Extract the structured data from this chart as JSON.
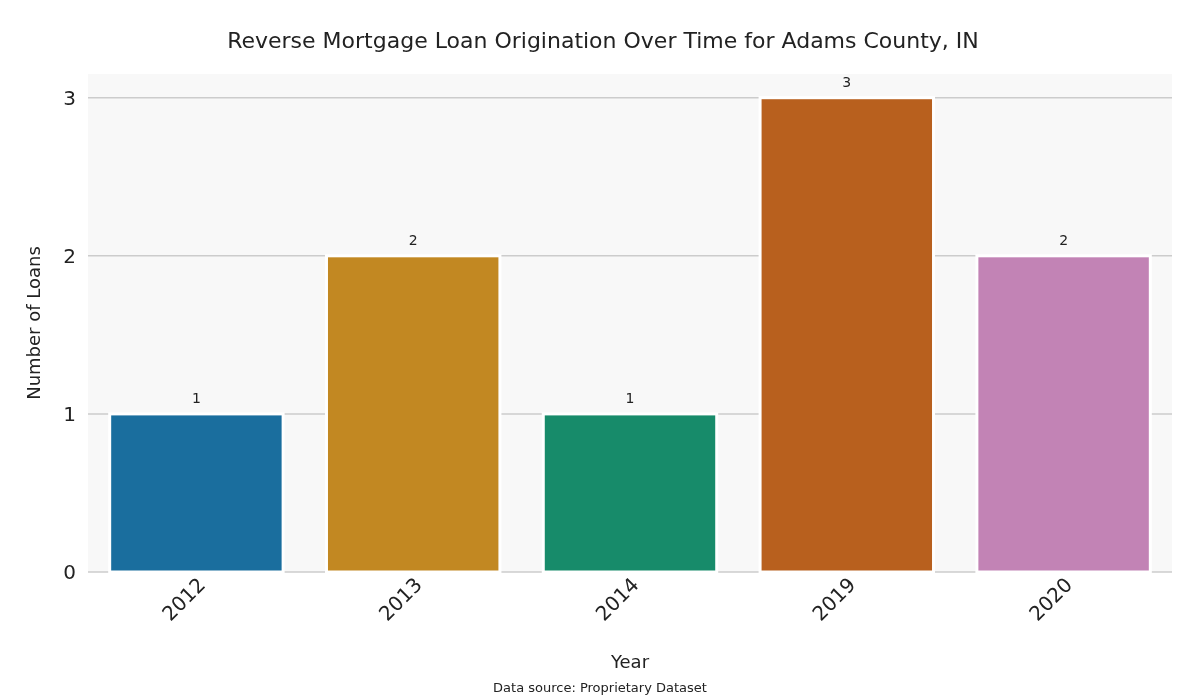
{
  "chart_data": {
    "type": "bar",
    "title": "Reverse Mortgage Loan Origination Over Time for Adams County, IN",
    "xlabel": "Year",
    "ylabel": "Number of Loans",
    "categories": [
      "2012",
      "2013",
      "2014",
      "2019",
      "2020"
    ],
    "values": [
      1,
      2,
      1,
      3,
      2
    ],
    "colors": [
      "#1a6e9e",
      "#c28822",
      "#178b6a",
      "#b8601e",
      "#c283b5"
    ],
    "ylim": [
      0,
      3.15
    ],
    "yticks": [
      0,
      1,
      2,
      3
    ],
    "grid": "y",
    "data_labels": true,
    "annotations": [
      "Data source: Proprietary Dataset"
    ]
  }
}
